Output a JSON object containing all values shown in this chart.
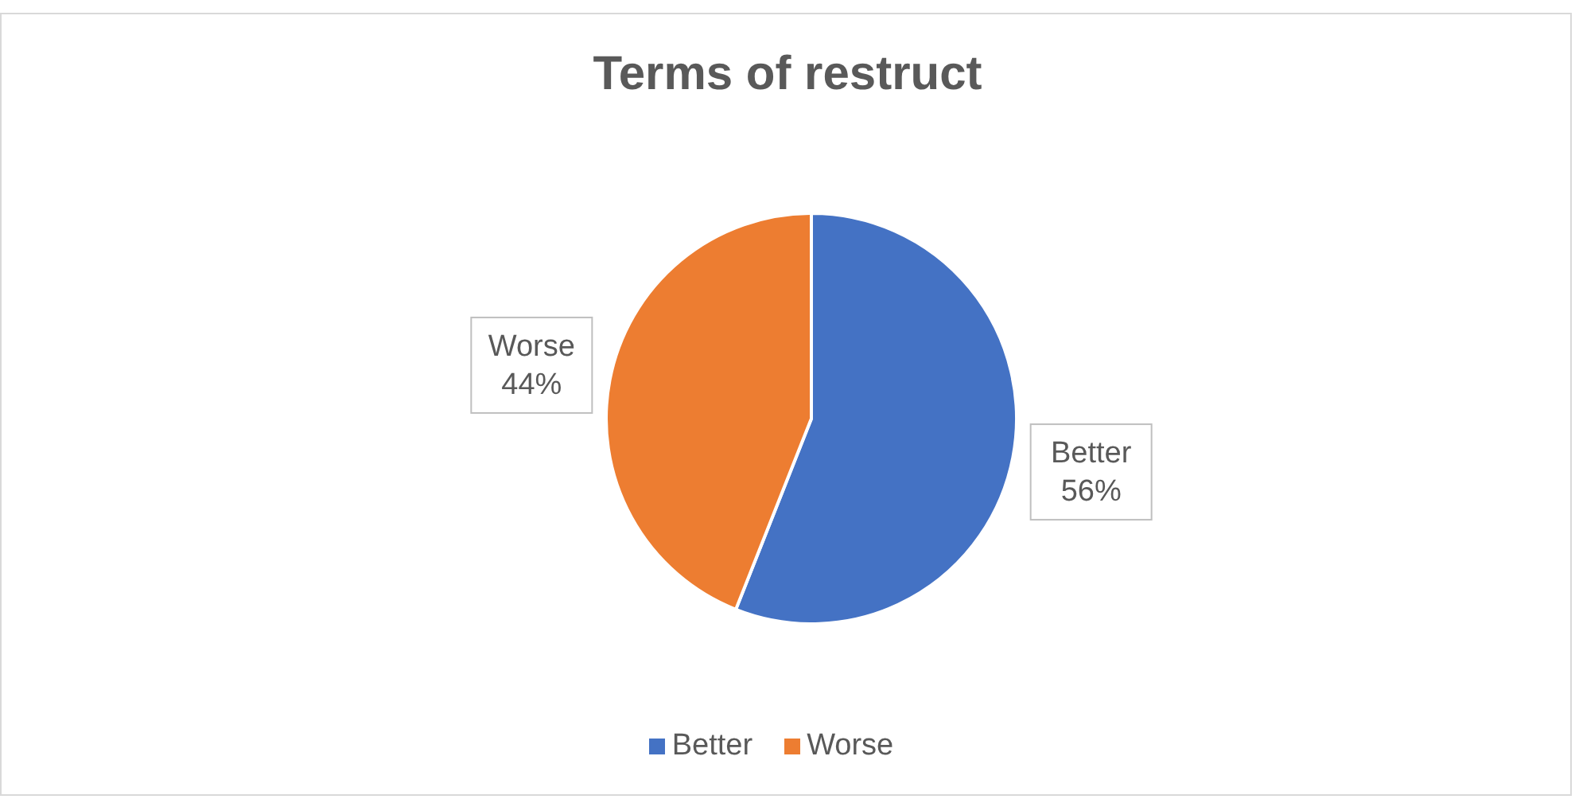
{
  "chart_data": {
    "type": "pie",
    "title": "Terms of restruct",
    "categories": [
      "Better",
      "Worse"
    ],
    "values": [
      56,
      44
    ],
    "colors": [
      "#4472c4",
      "#ed7d31"
    ],
    "value_labels": [
      "56%",
      "44%"
    ],
    "legend": "bottom"
  }
}
